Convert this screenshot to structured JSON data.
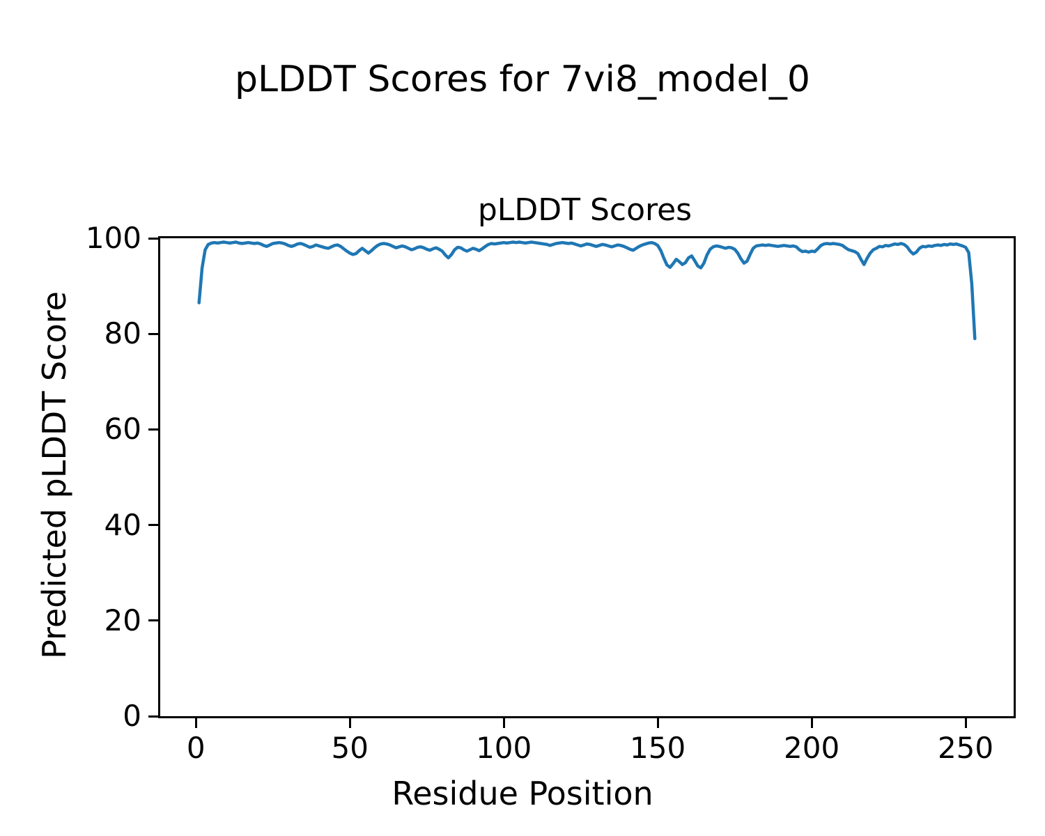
{
  "chart_data": {
    "type": "line",
    "suptitle": "pLDDT Scores for 7vi8_model_0",
    "title": "pLDDT Scores",
    "xlabel": "Residue Position",
    "ylabel": "Predicted pLDDT Score",
    "x_ticks": [
      0,
      50,
      100,
      150,
      200,
      250
    ],
    "y_ticks": [
      0,
      20,
      40,
      60,
      80,
      100
    ],
    "xlim": [
      -11.6,
      265.6
    ],
    "ylim": [
      0,
      100
    ],
    "grid": false,
    "legend": false,
    "line_color": "#1f77b4",
    "line_width": 4.5,
    "series": [
      {
        "name": "pLDDT",
        "x_start": 1,
        "values": [
          86.5,
          93.8,
          97.6,
          98.7,
          99.0,
          99.1,
          99.0,
          99.1,
          99.2,
          99.1,
          99.0,
          99.1,
          99.2,
          99.0,
          98.9,
          99.0,
          99.1,
          99.0,
          98.9,
          99.0,
          98.8,
          98.5,
          98.3,
          98.6,
          98.9,
          99.0,
          99.1,
          99.0,
          98.8,
          98.5,
          98.3,
          98.5,
          98.8,
          98.9,
          98.7,
          98.4,
          98.1,
          98.3,
          98.6,
          98.4,
          98.2,
          98.0,
          97.9,
          98.2,
          98.5,
          98.6,
          98.3,
          97.8,
          97.3,
          96.9,
          96.6,
          96.8,
          97.4,
          97.9,
          97.4,
          96.9,
          97.4,
          98.0,
          98.5,
          98.8,
          98.9,
          98.8,
          98.6,
          98.3,
          98.0,
          98.2,
          98.4,
          98.2,
          97.9,
          97.6,
          97.8,
          98.1,
          98.2,
          98.0,
          97.7,
          97.5,
          97.8,
          98.0,
          97.7,
          97.3,
          96.5,
          95.9,
          96.6,
          97.6,
          98.1,
          98.0,
          97.6,
          97.3,
          97.6,
          97.9,
          97.7,
          97.4,
          97.8,
          98.3,
          98.7,
          98.9,
          98.8,
          98.9,
          99.0,
          99.1,
          99.0,
          99.1,
          99.2,
          99.1,
          99.2,
          99.1,
          99.0,
          99.1,
          99.2,
          99.1,
          99.0,
          98.9,
          98.8,
          98.7,
          98.5,
          98.7,
          98.9,
          99.0,
          99.1,
          99.0,
          98.9,
          99.0,
          98.8,
          98.6,
          98.4,
          98.6,
          98.8,
          98.7,
          98.5,
          98.3,
          98.5,
          98.7,
          98.6,
          98.4,
          98.2,
          98.4,
          98.6,
          98.5,
          98.3,
          98.0,
          97.7,
          97.5,
          97.9,
          98.3,
          98.6,
          98.8,
          99.0,
          99.1,
          98.9,
          98.5,
          97.4,
          95.8,
          94.4,
          93.9,
          94.7,
          95.6,
          95.1,
          94.5,
          94.9,
          95.9,
          96.3,
          95.3,
          94.2,
          93.8,
          94.8,
          96.5,
          97.7,
          98.2,
          98.4,
          98.3,
          98.1,
          97.9,
          98.1,
          98.0,
          97.7,
          96.9,
          95.7,
          94.8,
          95.2,
          96.6,
          97.9,
          98.4,
          98.5,
          98.6,
          98.5,
          98.6,
          98.5,
          98.4,
          98.3,
          98.4,
          98.5,
          98.4,
          98.3,
          98.4,
          98.2,
          97.6,
          97.2,
          97.3,
          97.1,
          97.3,
          97.2,
          97.8,
          98.5,
          98.8,
          98.9,
          98.8,
          98.9,
          98.8,
          98.7,
          98.5,
          98.0,
          97.6,
          97.4,
          97.2,
          96.8,
          95.6,
          94.5,
          95.8,
          96.9,
          97.6,
          97.9,
          98.3,
          98.2,
          98.5,
          98.4,
          98.6,
          98.8,
          98.7,
          98.9,
          98.7,
          98.2,
          97.3,
          96.7,
          97.1,
          97.9,
          98.3,
          98.2,
          98.4,
          98.3,
          98.5,
          98.6,
          98.5,
          98.7,
          98.6,
          98.8,
          98.7,
          98.8,
          98.6,
          98.4,
          98.1,
          97.0,
          90.5,
          79.0
        ]
      }
    ]
  }
}
